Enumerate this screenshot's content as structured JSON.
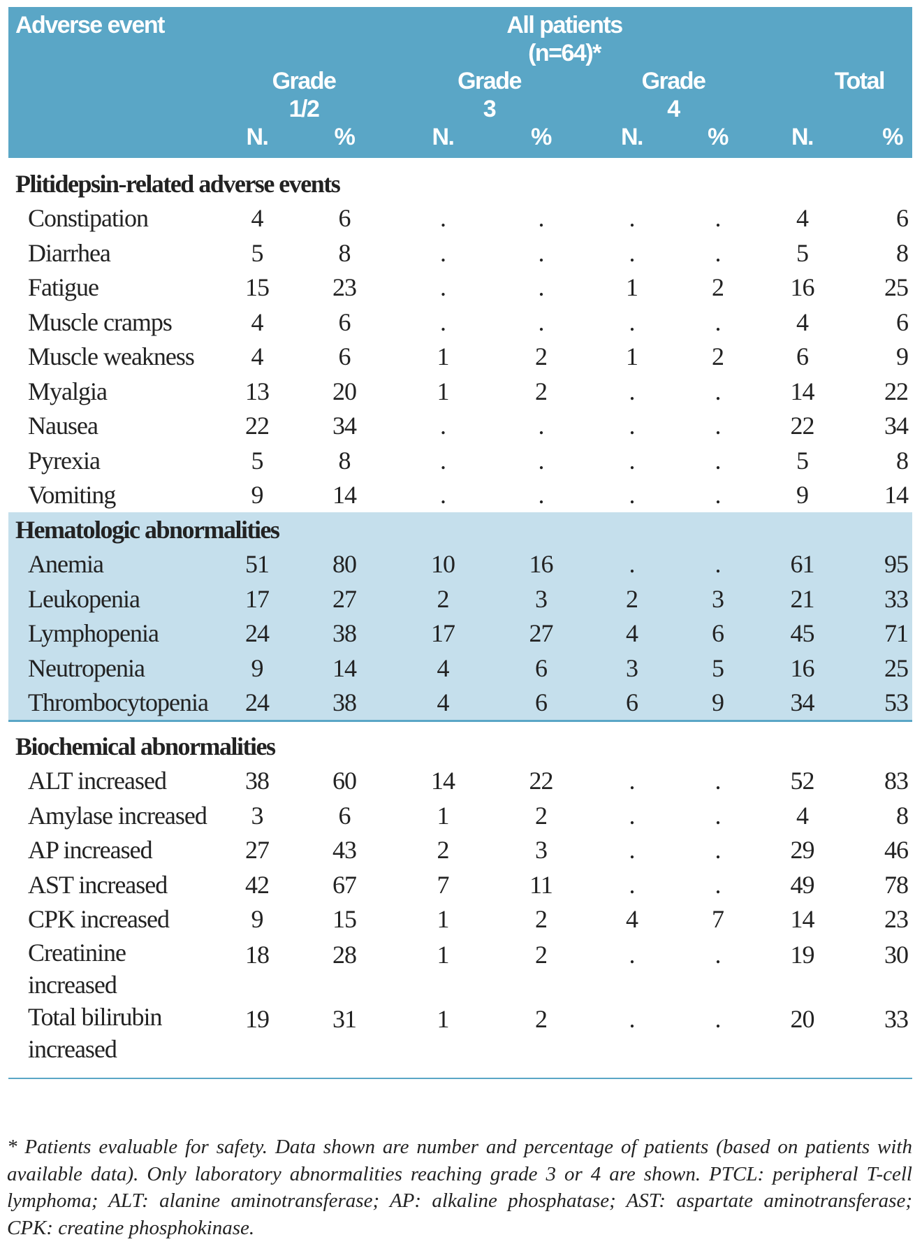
{
  "header": {
    "adverse_event": "Adverse event",
    "all_patients": "All patients",
    "n": "(n=64)*",
    "groups": [
      {
        "line1": "Grade",
        "line2": "1/2"
      },
      {
        "line1": "Grade",
        "line2": "3"
      },
      {
        "line1": "Grade",
        "line2": "4"
      },
      {
        "line1": "Total",
        "line2": ""
      }
    ],
    "subcols": [
      "N.",
      "%",
      "N.",
      "%",
      "N.",
      "%",
      "N.",
      "%"
    ]
  },
  "sections": [
    {
      "title": "Plitidepsin-related adverse events",
      "rows": [
        {
          "label": "Constipation",
          "values": [
            "4",
            "6",
            ".",
            ".",
            ".",
            ".",
            "4",
            "6"
          ]
        },
        {
          "label": "Diarrhea",
          "values": [
            "5",
            "8",
            ".",
            ".",
            ".",
            ".",
            "5",
            "8"
          ]
        },
        {
          "label": "Fatigue",
          "values": [
            "15",
            "23",
            ".",
            ".",
            "1",
            "2",
            "16",
            "25"
          ]
        },
        {
          "label": "Muscle cramps",
          "values": [
            "4",
            "6",
            ".",
            ".",
            ".",
            ".",
            "4",
            "6"
          ]
        },
        {
          "label": "Muscle weakness",
          "values": [
            "4",
            "6",
            "1",
            "2",
            "1",
            "2",
            "6",
            "9"
          ]
        },
        {
          "label": "Myalgia",
          "values": [
            "13",
            "20",
            "1",
            "2",
            ".",
            ".",
            "14",
            "22"
          ]
        },
        {
          "label": "Nausea",
          "values": [
            "22",
            "34",
            ".",
            ".",
            ".",
            ".",
            "22",
            "34"
          ]
        },
        {
          "label": "Pyrexia",
          "values": [
            "5",
            "8",
            ".",
            ".",
            ".",
            ".",
            "5",
            "8"
          ]
        },
        {
          "label": "Vomiting",
          "values": [
            "9",
            "14",
            ".",
            ".",
            ".",
            ".",
            "9",
            "14"
          ]
        }
      ]
    },
    {
      "title": "Hematologic abnormalities",
      "rows": [
        {
          "label": "Anemia",
          "values": [
            "51",
            "80",
            "10",
            "16",
            ".",
            ".",
            "61",
            "95"
          ]
        },
        {
          "label": "Leukopenia",
          "values": [
            "17",
            "27",
            "2",
            "3",
            "2",
            "3",
            "21",
            "33"
          ]
        },
        {
          "label": "Lymphopenia",
          "values": [
            "24",
            "38",
            "17",
            "27",
            "4",
            "6",
            "45",
            "71"
          ]
        },
        {
          "label": "Neutropenia",
          "values": [
            "9",
            "14",
            "4",
            "6",
            "3",
            "5",
            "16",
            "25"
          ]
        },
        {
          "label": "Thrombocytopenia",
          "values": [
            "24",
            "38",
            "4",
            "6",
            "6",
            "9",
            "34",
            "53"
          ]
        }
      ]
    },
    {
      "title": "Biochemical abnormalities",
      "rows": [
        {
          "label": "ALT increased",
          "values": [
            "38",
            "60",
            "14",
            "22",
            ".",
            ".",
            "52",
            "83"
          ]
        },
        {
          "label": "Amylase increased",
          "values": [
            "3",
            "6",
            "1",
            "2",
            ".",
            ".",
            "4",
            "8"
          ]
        },
        {
          "label": "AP increased",
          "values": [
            "27",
            "43",
            "2",
            "3",
            ".",
            ".",
            "29",
            "46"
          ]
        },
        {
          "label": "AST increased",
          "values": [
            "42",
            "67",
            "7",
            "11",
            ".",
            ".",
            "49",
            "78"
          ]
        },
        {
          "label": "CPK increased",
          "values": [
            "9",
            "15",
            "1",
            "2",
            "4",
            "7",
            "14",
            "23"
          ]
        },
        {
          "label": "Creatinine increased",
          "values": [
            "18",
            "28",
            "1",
            "2",
            ".",
            ".",
            "19",
            "30"
          ]
        },
        {
          "label": "Total bilirubin increased",
          "values": [
            "19",
            "31",
            "1",
            "2",
            ".",
            ".",
            "20",
            "33"
          ]
        }
      ]
    }
  ],
  "footnote": "* Patients evaluable for safety. Data shown are number and percentage of patients (based on patients with available data). Only laboratory abnormalities reaching grade 3 or 4 are shown. PTCL: peripheral T-cell lymphoma; ALT: alanine aminotransferase; AP: alkaline phosphatase; AST: aspartate aminotransferase; CPK: creatine phosphokinase.",
  "colors": {
    "header_bg": "#5aa6c6",
    "highlight_bg": "#c5dfec"
  }
}
